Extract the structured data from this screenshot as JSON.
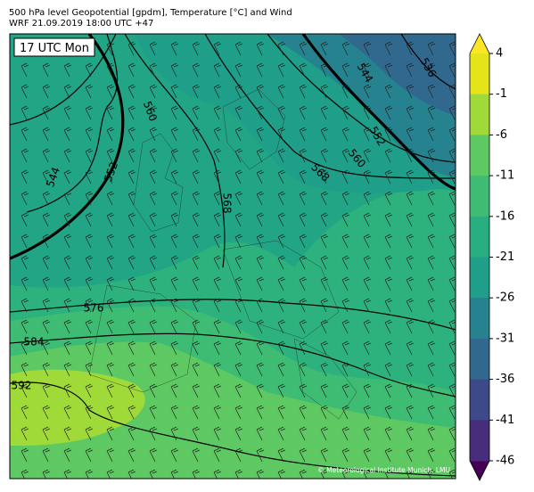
{
  "header": {
    "title": "500 hPa level Geopotential [gpdm], Temperature [°C] and Wind",
    "subtitle": "WRF 21.09.2019 18:00 UTC +47"
  },
  "map": {
    "time_label": "17 UTC Mon",
    "credit": "© Meteorological Institute Munich, LMU",
    "contour_labels": [
      "560",
      "552",
      "544",
      "568",
      "544",
      "536",
      "552",
      "560",
      "568",
      "576",
      "584",
      "592"
    ]
  },
  "colorbar": {
    "ticks": [
      4,
      -1,
      -6,
      -11,
      -16,
      -21,
      -26,
      -31,
      -36,
      -41,
      -46
    ],
    "colors": [
      "#e5e419",
      "#a0da39",
      "#5ec962",
      "#3fbc73",
      "#28ae80",
      "#1f9e89",
      "#26828e",
      "#31688e",
      "#3e4989",
      "#472d7b",
      "#440154"
    ],
    "over_color": "#fde725",
    "under_color": "#440154"
  }
}
